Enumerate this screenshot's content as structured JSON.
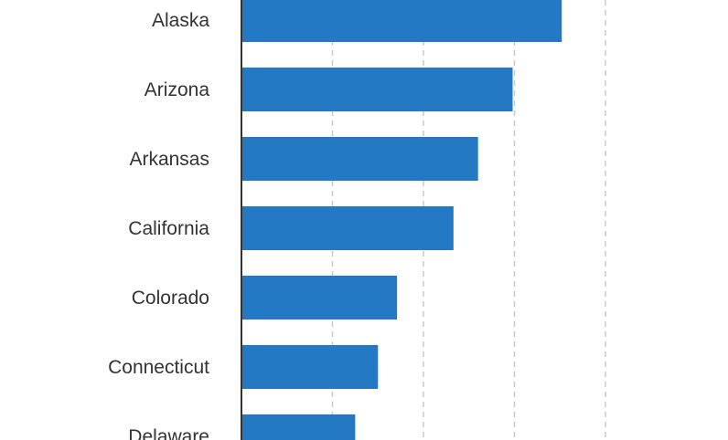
{
  "chart_data": {
    "type": "bar",
    "orientation": "horizontal",
    "title": "",
    "xlabel": "",
    "ylabel": "",
    "categories": [
      "Alaska",
      "Arizona",
      "Arkansas",
      "California",
      "Colorado",
      "Connecticut",
      "Delaware"
    ],
    "values": [
      35.2,
      29.8,
      26.0,
      23.3,
      17.1,
      15.0,
      12.5
    ],
    "xlim": [
      0,
      40
    ],
    "x_gridlines": [
      10,
      20,
      30,
      40
    ],
    "grid": "vertical-dashed",
    "bar_color": "#2379c3",
    "axis_color": "#333333",
    "grid_color": "#c8c8c8",
    "label_color": "#333333"
  }
}
